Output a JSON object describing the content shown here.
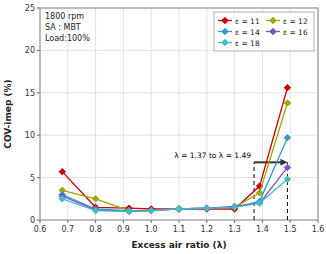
{
  "chart_data": {
    "type": "line",
    "title": "1800 rpm\nSA : MBT\nLoad:100%",
    "x_label": "Excess air ratio  (λ)",
    "y_label": "COV-imep  (%)",
    "xlim": [
      0.6,
      1.6
    ],
    "ylim": [
      0,
      25
    ],
    "xticks": [
      0.6,
      0.7,
      0.8,
      0.9,
      {
        "value": 1,
        "label": "1.0"
      },
      1.1,
      1.2,
      1.3,
      1.4,
      1.5,
      1.6
    ],
    "yticks": [
      0,
      5,
      10,
      15,
      20,
      25
    ],
    "grid": true,
    "legend": "upper right",
    "x": [
      0.68,
      0.8,
      0.92,
      1.0,
      1.1,
      1.2,
      1.3,
      1.39,
      1.49
    ],
    "series": [
      {
        "name": "ε = 11",
        "color": "#cc0000",
        "marker": "diamond",
        "values": [
          5.7,
          1.5,
          1.4,
          1.3,
          1.3,
          1.3,
          1.3,
          4.0,
          15.6
        ]
      },
      {
        "name": "ε = 12",
        "color": "#99aa00",
        "marker": "diamond",
        "values": [
          3.5,
          2.5,
          1.1,
          1.1,
          1.3,
          1.4,
          1.5,
          3.2,
          13.8
        ]
      },
      {
        "name": "ε = 14",
        "color": "#3399cc",
        "marker": "diamond",
        "values": [
          3.0,
          1.3,
          1.1,
          1.1,
          1.3,
          1.4,
          1.5,
          2.2,
          9.7
        ]
      },
      {
        "name": "ε = 16",
        "color": "#7755bb",
        "marker": "diamond",
        "values": [
          2.8,
          1.2,
          1.0,
          1.1,
          1.3,
          1.4,
          1.6,
          2.0,
          6.2
        ]
      },
      {
        "name": "ε = 18",
        "color": "#44bbcc",
        "marker": "diamond",
        "values": [
          2.5,
          1.1,
          1.0,
          1.1,
          1.3,
          1.4,
          1.5,
          2.0,
          4.8
        ]
      }
    ],
    "vlines": [
      {
        "x": 1.37,
        "ymin": 0,
        "ymax": 6.8
      },
      {
        "x": 1.49,
        "ymin": 0,
        "ymax": 6.8
      }
    ],
    "arrow": {
      "x_start": 1.37,
      "x_end": 1.49,
      "y": 6.8
    },
    "annotations": [
      {
        "text": "λ = 1.37 to λ = 1.49",
        "x": 1.37,
        "y": 6.8
      }
    ]
  }
}
